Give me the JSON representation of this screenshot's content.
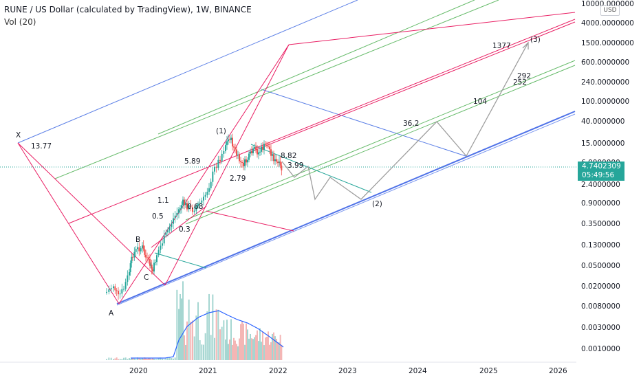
{
  "header": {
    "title": "RUNE / US Dollar (calculated by TradingView), 1W, BINANCE",
    "indicator": "Vol (20)",
    "currency": "USD"
  },
  "price_label": {
    "price": "4.7402309",
    "countdown": "05:49:56",
    "color": "#26a69a"
  },
  "chart_data": {
    "type": "candlestick",
    "title": "RUNE / US Dollar (calculated by TradingView), 1W, BINANCE",
    "y_scale": "log",
    "y_axis_labels": [
      "10000.000000",
      "4000.0000000",
      "1500.0000000",
      "600.0000000",
      "240.0000000",
      "100.0000000",
      "40.0000000",
      "15.0000000",
      "6.0000000",
      "2.4000000",
      "0.9000000",
      "0.3500000",
      "0.1300000",
      "0.0500000",
      "0.0200000",
      "0.0080000",
      "0.0030000",
      "0.0010000"
    ],
    "x_axis_labels": [
      "2020",
      "2021",
      "2022",
      "2023",
      "2024",
      "2025",
      "2026"
    ],
    "current_price": 4.7402309,
    "annotations": [
      "X",
      "13.77",
      "A",
      "B",
      "C",
      "1.1",
      "0.5",
      "0.3",
      "0.68",
      "5.89",
      "(1)",
      "2.79",
      "8.82",
      "3.99",
      "(2)",
      "36.2",
      "104",
      "252",
      "292",
      "1377",
      "(3)"
    ],
    "projected_wave_path": [
      {
        "date": "2022-02",
        "price": 3.99
      },
      {
        "date": "2022-05",
        "price": 1.0
      },
      {
        "date": "2022-08",
        "price": 3.0
      },
      {
        "date": "2023-03",
        "price": 1.0
      },
      {
        "date": "2024-03",
        "price": 36.2
      },
      {
        "date": "2024-08",
        "price": 8.0
      },
      {
        "date": "2025-06",
        "price": 1377
      }
    ],
    "colors": {
      "up_candle": "#26a69a",
      "down_candle": "#ef5350",
      "pitchfork_pink": "#e91e63",
      "pitchfork_green": "#4caf50",
      "channel_blue": "#2962ff",
      "volume_ma": "#2962ff",
      "projection": "#9e9e9e"
    }
  }
}
